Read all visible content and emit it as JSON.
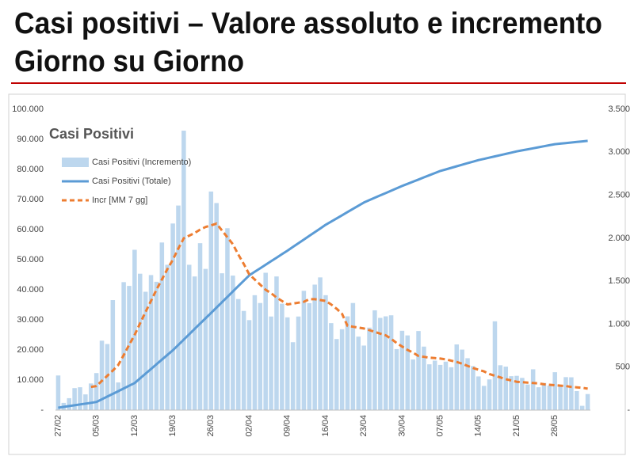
{
  "header": {
    "title_lines": [
      "Casi positivi – Valore assoluto e incremento",
      "Giorno su Giorno"
    ]
  },
  "chart_data": {
    "type": "bar",
    "title": "Casi Positivi",
    "categories": [
      "27/02",
      null,
      null,
      null,
      null,
      null,
      null,
      "05/03",
      null,
      null,
      null,
      null,
      null,
      null,
      "12/03",
      null,
      null,
      null,
      null,
      null,
      null,
      "19/03",
      null,
      null,
      null,
      null,
      null,
      null,
      "26/03",
      null,
      null,
      null,
      null,
      null,
      null,
      "02/04",
      null,
      null,
      null,
      null,
      null,
      null,
      "09/04",
      null,
      null,
      null,
      null,
      null,
      null,
      "16/04",
      null,
      null,
      null,
      null,
      null,
      null,
      "23/04",
      null,
      null,
      null,
      null,
      null,
      null,
      "30/04",
      null,
      null,
      null,
      null,
      null,
      null,
      "07/05",
      null,
      null,
      null,
      null,
      null,
      null,
      "14/05",
      null,
      null,
      null,
      null,
      null,
      null,
      "21/05",
      null,
      null,
      null,
      null,
      null,
      null,
      "28/05",
      null,
      null,
      null,
      null,
      null,
      null
    ],
    "series": [
      {
        "name": "Casi Positivi (Incremento)",
        "type": "bar",
        "axis": "y2",
        "color": "#bdd7ee",
        "values": [
          403,
          84,
          139,
          256,
          266,
          183,
          310,
          431,
          808,
          769,
          1280,
          322,
          1489,
          1445,
          1865,
          1587,
          1377,
          1571,
          1493,
          1950,
          1691,
          2171,
          2380,
          3251,
          1691,
          1555,
          1942,
          1643,
          2543,
          2409,
          1592,
          2116,
          1565,
          1292,
          1154,
          1047,
          1337,
          1246,
          1598,
          1089,
          1555,
          1238,
          1079,
          790,
          1089,
          1388,
          1244,
          1460,
          1544,
          1337,
          1012,
          827,
          941,
          1091,
          1246,
          855,
          751,
          960,
          1161,
          1073,
          1091,
          1103,
          710,
          923,
          869,
          589,
          920,
          739,
          533,
          576,
          526,
          564,
          499,
          764,
          704,
          604,
          512,
          392,
          282,
          357,
          1033,
          522,
          506,
          395,
          399,
          375,
          298,
          475,
          266,
          316,
          285,
          441,
          293,
          384,
          382,
          221,
          50,
          187
        ]
      },
      {
        "name": "Casi Positivi (Totale)",
        "type": "line",
        "color": "#5b9bd5",
        "values": [
          800,
          1070,
          1340,
          1610,
          1890,
          2160,
          2430,
          2700,
          3600,
          4500,
          5400,
          6300,
          7200,
          8100,
          9000,
          10560,
          12110,
          13670,
          15230,
          16790,
          18340,
          19900,
          21670,
          23440,
          25210,
          26990,
          28760,
          30530,
          32300,
          34090,
          35870,
          37660,
          39440,
          41230,
          43010,
          44800,
          45970,
          47140,
          48310,
          49490,
          50660,
          51830,
          53000,
          54230,
          55460,
          56690,
          57910,
          59140,
          60370,
          61600,
          62660,
          63710,
          64770,
          65830,
          66890,
          67940,
          69000,
          69790,
          70570,
          71360,
          72140,
          72930,
          73710,
          74500,
          75210,
          75930,
          76640,
          77360,
          78070,
          78790,
          79500,
          80010,
          80530,
          81040,
          81560,
          82070,
          82590,
          83100,
          83510,
          83930,
          84340,
          84760,
          85170,
          85590,
          86000,
          86340,
          86690,
          87030,
          87370,
          87710,
          88060,
          88400,
          88580,
          88770,
          88950,
          89130,
          89320,
          89500
        ]
      },
      {
        "name": "Incr [MM 7 gg]",
        "type": "dashed-line",
        "axis": "y2",
        "color": "#ed7d31",
        "values": [
          null,
          null,
          null,
          null,
          null,
          null,
          270,
          280,
          340,
          400,
          460,
          525,
          640,
          760,
          875,
          1010,
          1140,
          1270,
          1400,
          1520,
          1640,
          1750,
          1880,
          2000,
          2030,
          2060,
          2100,
          2130,
          2150,
          2170,
          2090,
          2010,
          1930,
          1810,
          1700,
          1580,
          1520,
          1460,
          1400,
          1360,
          1310,
          1270,
          1230,
          1240,
          1250,
          1260,
          1290,
          1290,
          1280,
          1270,
          1230,
          1180,
          1120,
          980,
          970,
          960,
          950,
          930,
          910,
          890,
          870,
          830,
          780,
          740,
          700,
          670,
          630,
          620,
          610,
          605,
          600,
          590,
          575,
          560,
          540,
          515,
          490,
          470,
          450,
          420,
          400,
          380,
          360,
          345,
          330,
          325,
          320,
          315,
          310,
          300,
          295,
          290,
          285,
          280,
          270,
          265,
          260,
          250
        ]
      }
    ],
    "ylim": [
      0,
      100000
    ],
    "yticks": [
      {
        "value": 0,
        "label": "-"
      },
      {
        "value": 10000,
        "label": "10.000"
      },
      {
        "value": 20000,
        "label": "20.000"
      },
      {
        "value": 30000,
        "label": "30.000"
      },
      {
        "value": 40000,
        "label": "40.000"
      },
      {
        "value": 50000,
        "label": "50.000"
      },
      {
        "value": 60000,
        "label": "60.000"
      },
      {
        "value": 70000,
        "label": "70.000"
      },
      {
        "value": 80000,
        "label": "80.000"
      },
      {
        "value": 90000,
        "label": "90.000"
      },
      {
        "value": 100000,
        "label": "100.000"
      }
    ],
    "y2lim": [
      0,
      3500
    ],
    "y2ticks": [
      {
        "value": 0,
        "label": "-"
      },
      500,
      {
        "value": 1000,
        "label": "1.000"
      },
      {
        "value": 1500,
        "label": "1.500"
      },
      {
        "value": 2000,
        "label": "2.000"
      },
      {
        "value": 2500,
        "label": "2.500"
      },
      {
        "value": 3000,
        "label": "3.000"
      },
      {
        "value": 3500,
        "label": "3.500"
      }
    ],
    "legend": "top-left",
    "grid": false
  }
}
